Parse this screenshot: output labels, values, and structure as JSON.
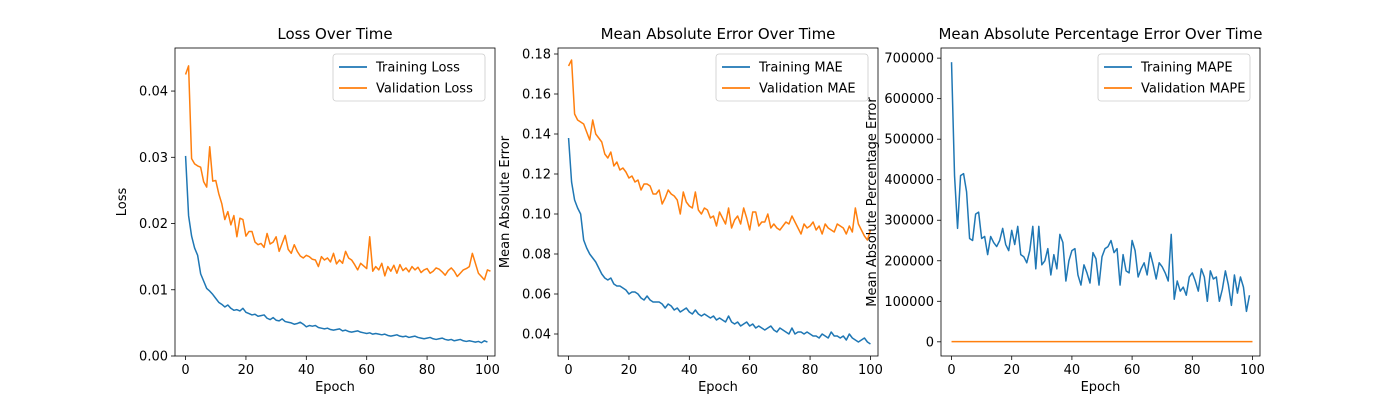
{
  "colors": {
    "training": "#1f77b4",
    "validation": "#ff7f0e"
  },
  "chart_data": [
    {
      "type": "line",
      "title": "Loss Over Time",
      "xlabel": "Epoch",
      "ylabel": "Loss",
      "xlim": [
        -3.5,
        102.5
      ],
      "ylim": [
        0.0,
        0.0465
      ],
      "xticks": [
        0,
        20,
        40,
        60,
        80,
        100
      ],
      "xtick_labels": [
        "0",
        "20",
        "40",
        "60",
        "80",
        "100"
      ],
      "yticks": [
        0.0,
        0.01,
        0.02,
        0.03,
        0.04
      ],
      "ytick_labels": [
        "0.00",
        "0.01",
        "0.02",
        "0.03",
        "0.04"
      ],
      "legend": "top-right",
      "grid": false,
      "x_start": 0,
      "series": [
        {
          "name": "Training Loss",
          "color": "#1f77b4",
          "values": [
            0.0302,
            0.0212,
            0.0181,
            0.0163,
            0.0152,
            0.0124,
            0.0113,
            0.0102,
            0.0098,
            0.0093,
            0.0087,
            0.0081,
            0.0078,
            0.0074,
            0.0077,
            0.0072,
            0.0069,
            0.007,
            0.0068,
            0.0072,
            0.0066,
            0.0064,
            0.0062,
            0.0063,
            0.006,
            0.0061,
            0.0062,
            0.0057,
            0.0055,
            0.0058,
            0.0054,
            0.0053,
            0.0056,
            0.0052,
            0.0051,
            0.005,
            0.0048,
            0.0049,
            0.0051,
            0.0048,
            0.0044,
            0.0046,
            0.0045,
            0.0046,
            0.0043,
            0.0042,
            0.0041,
            0.0042,
            0.004,
            0.0039,
            0.004,
            0.0041,
            0.0038,
            0.0039,
            0.0037,
            0.0036,
            0.0037,
            0.0038,
            0.0036,
            0.0035,
            0.0034,
            0.0035,
            0.0033,
            0.0034,
            0.0033,
            0.0032,
            0.0033,
            0.0031,
            0.003,
            0.0031,
            0.0032,
            0.003,
            0.0029,
            0.003,
            0.0028,
            0.0029,
            0.003,
            0.0028,
            0.0027,
            0.0026,
            0.0027,
            0.0028,
            0.0026,
            0.0025,
            0.0026,
            0.0027,
            0.0025,
            0.0024,
            0.0025,
            0.0023,
            0.0024,
            0.0025,
            0.0023,
            0.0022,
            0.0023,
            0.0022,
            0.0021,
            0.0022,
            0.002,
            0.0023,
            0.0021
          ]
        },
        {
          "name": "Validation Loss",
          "color": "#ff7f0e",
          "values": [
            0.0425,
            0.0438,
            0.0298,
            0.029,
            0.0287,
            0.0285,
            0.0263,
            0.0255,
            0.0316,
            0.0264,
            0.0265,
            0.0245,
            0.023,
            0.0206,
            0.0218,
            0.0198,
            0.0212,
            0.018,
            0.0208,
            0.0206,
            0.0181,
            0.0188,
            0.0188,
            0.0172,
            0.0168,
            0.017,
            0.0164,
            0.0185,
            0.0169,
            0.0172,
            0.018,
            0.0158,
            0.017,
            0.0182,
            0.0161,
            0.0155,
            0.0168,
            0.0158,
            0.0151,
            0.0148,
            0.0152,
            0.015,
            0.0146,
            0.0145,
            0.0135,
            0.015,
            0.0145,
            0.0148,
            0.0142,
            0.0155,
            0.0139,
            0.0145,
            0.014,
            0.0158,
            0.0148,
            0.0145,
            0.0138,
            0.013,
            0.014,
            0.0136,
            0.0132,
            0.018,
            0.0128,
            0.0135,
            0.013,
            0.014,
            0.0121,
            0.0135,
            0.0128,
            0.0137,
            0.0125,
            0.0138,
            0.0129,
            0.0133,
            0.0127,
            0.0135,
            0.013,
            0.0134,
            0.0126,
            0.013,
            0.0132,
            0.0125,
            0.0128,
            0.0133,
            0.0131,
            0.0127,
            0.0122,
            0.0129,
            0.0133,
            0.0128,
            0.012,
            0.0125,
            0.013,
            0.0132,
            0.0135,
            0.0155,
            0.014,
            0.0125,
            0.012,
            0.0115,
            0.013,
            0.0128
          ]
        }
      ]
    },
    {
      "type": "line",
      "title": "Mean Absolute Error Over Time",
      "xlabel": "Epoch",
      "ylabel": "Mean Absolute Error",
      "xlim": [
        -3.5,
        102.5
      ],
      "ylim": [
        0.029,
        0.183
      ],
      "xticks": [
        0,
        20,
        40,
        60,
        80,
        100
      ],
      "xtick_labels": [
        "0",
        "20",
        "40",
        "60",
        "80",
        "100"
      ],
      "yticks": [
        0.04,
        0.06,
        0.08,
        0.1,
        0.12,
        0.14,
        0.16,
        0.18
      ],
      "ytick_labels": [
        "0.04",
        "0.06",
        "0.08",
        "0.10",
        "0.12",
        "0.14",
        "0.16",
        "0.18"
      ],
      "legend": "top-right",
      "grid": false,
      "x_start": 0,
      "series": [
        {
          "name": "Training MAE",
          "color": "#1f77b4",
          "values": [
            0.138,
            0.116,
            0.107,
            0.103,
            0.1,
            0.087,
            0.083,
            0.08,
            0.078,
            0.076,
            0.073,
            0.07,
            0.068,
            0.067,
            0.068,
            0.065,
            0.064,
            0.064,
            0.063,
            0.062,
            0.06,
            0.061,
            0.061,
            0.06,
            0.058,
            0.057,
            0.059,
            0.057,
            0.056,
            0.056,
            0.056,
            0.055,
            0.053,
            0.055,
            0.054,
            0.052,
            0.053,
            0.051,
            0.052,
            0.053,
            0.051,
            0.05,
            0.052,
            0.05,
            0.049,
            0.05,
            0.049,
            0.048,
            0.049,
            0.047,
            0.048,
            0.047,
            0.046,
            0.049,
            0.046,
            0.045,
            0.046,
            0.044,
            0.045,
            0.046,
            0.044,
            0.045,
            0.043,
            0.044,
            0.043,
            0.042,
            0.043,
            0.044,
            0.042,
            0.041,
            0.043,
            0.042,
            0.041,
            0.04,
            0.043,
            0.04,
            0.041,
            0.041,
            0.04,
            0.041,
            0.04,
            0.039,
            0.039,
            0.038,
            0.04,
            0.039,
            0.038,
            0.041,
            0.039,
            0.039,
            0.038,
            0.039,
            0.037,
            0.04,
            0.038,
            0.037,
            0.036,
            0.037,
            0.038,
            0.036,
            0.035
          ]
        },
        {
          "name": "Validation MAE",
          "color": "#ff7f0e",
          "values": [
            0.174,
            0.177,
            0.15,
            0.147,
            0.146,
            0.145,
            0.141,
            0.137,
            0.147,
            0.14,
            0.138,
            0.136,
            0.13,
            0.128,
            0.131,
            0.124,
            0.126,
            0.122,
            0.123,
            0.121,
            0.118,
            0.119,
            0.116,
            0.117,
            0.112,
            0.115,
            0.115,
            0.114,
            0.11,
            0.11,
            0.112,
            0.105,
            0.108,
            0.112,
            0.11,
            0.109,
            0.107,
            0.1,
            0.111,
            0.106,
            0.104,
            0.103,
            0.111,
            0.102,
            0.1,
            0.103,
            0.102,
            0.098,
            0.099,
            0.094,
            0.101,
            0.098,
            0.095,
            0.103,
            0.093,
            0.097,
            0.099,
            0.095,
            0.103,
            0.098,
            0.092,
            0.101,
            0.101,
            0.094,
            0.096,
            0.096,
            0.1,
            0.093,
            0.095,
            0.093,
            0.092,
            0.094,
            0.096,
            0.095,
            0.099,
            0.096,
            0.093,
            0.09,
            0.095,
            0.093,
            0.094,
            0.096,
            0.092,
            0.094,
            0.09,
            0.095,
            0.093,
            0.092,
            0.091,
            0.095,
            0.094,
            0.093,
            0.09,
            0.094,
            0.091,
            0.103,
            0.095,
            0.092,
            0.089,
            0.087,
            0.092
          ]
        }
      ]
    },
    {
      "type": "line",
      "title": "Mean Absolute Percentage Error Over Time",
      "xlabel": "Epoch",
      "ylabel": "Mean Absolute Percentage Error",
      "xlim": [
        -3.5,
        102.5
      ],
      "ylim": [
        -35000,
        725000
      ],
      "xticks": [
        0,
        20,
        40,
        60,
        80,
        100
      ],
      "xtick_labels": [
        "0",
        "20",
        "40",
        "60",
        "80",
        "100"
      ],
      "yticks": [
        0,
        100000,
        200000,
        300000,
        400000,
        500000,
        600000,
        700000
      ],
      "ytick_labels": [
        "0",
        "100000",
        "200000",
        "300000",
        "400000",
        "500000",
        "600000",
        "700000"
      ],
      "legend": "top-right",
      "grid": false,
      "x_start": 0,
      "series": [
        {
          "name": "Training MAPE",
          "color": "#1f77b4",
          "values": [
            690000,
            410000,
            280000,
            410000,
            415000,
            370000,
            255000,
            250000,
            315000,
            320000,
            255000,
            260000,
            215000,
            260000,
            245000,
            235000,
            250000,
            280000,
            240000,
            225000,
            275000,
            240000,
            285000,
            215000,
            210000,
            195000,
            225000,
            285000,
            180000,
            285000,
            190000,
            200000,
            230000,
            165000,
            215000,
            180000,
            265000,
            245000,
            150000,
            200000,
            225000,
            230000,
            165000,
            140000,
            190000,
            170000,
            145000,
            220000,
            205000,
            140000,
            210000,
            230000,
            235000,
            250000,
            220000,
            230000,
            140000,
            215000,
            175000,
            170000,
            250000,
            225000,
            160000,
            180000,
            195000,
            165000,
            220000,
            190000,
            155000,
            195000,
            185000,
            170000,
            150000,
            265000,
            105000,
            150000,
            125000,
            135000,
            115000,
            160000,
            170000,
            150000,
            125000,
            180000,
            160000,
            100000,
            175000,
            155000,
            160000,
            100000,
            130000,
            175000,
            140000,
            90000,
            165000,
            120000,
            160000,
            135000,
            75000,
            115000
          ]
        },
        {
          "name": "Validation MAPE",
          "color": "#ff7f0e",
          "values": [
            600,
            600,
            600,
            600,
            600,
            600,
            600,
            600,
            600,
            600,
            600,
            600,
            600,
            600,
            600,
            600,
            600,
            600,
            600,
            600,
            600,
            600,
            600,
            600,
            600,
            600,
            600,
            600,
            600,
            600,
            600,
            600,
            600,
            600,
            600,
            600,
            600,
            600,
            600,
            600,
            600,
            600,
            600,
            600,
            600,
            600,
            600,
            600,
            600,
            600,
            600,
            600,
            600,
            600,
            600,
            600,
            600,
            600,
            600,
            600,
            600,
            600,
            600,
            600,
            600,
            600,
            600,
            600,
            600,
            600,
            600,
            600,
            600,
            600,
            600,
            600,
            600,
            600,
            600,
            600,
            600,
            600,
            600,
            600,
            600,
            600,
            600,
            600,
            600,
            600,
            600,
            600,
            600,
            600,
            600,
            600,
            600,
            600,
            600,
            600,
            600
          ]
        }
      ]
    }
  ]
}
